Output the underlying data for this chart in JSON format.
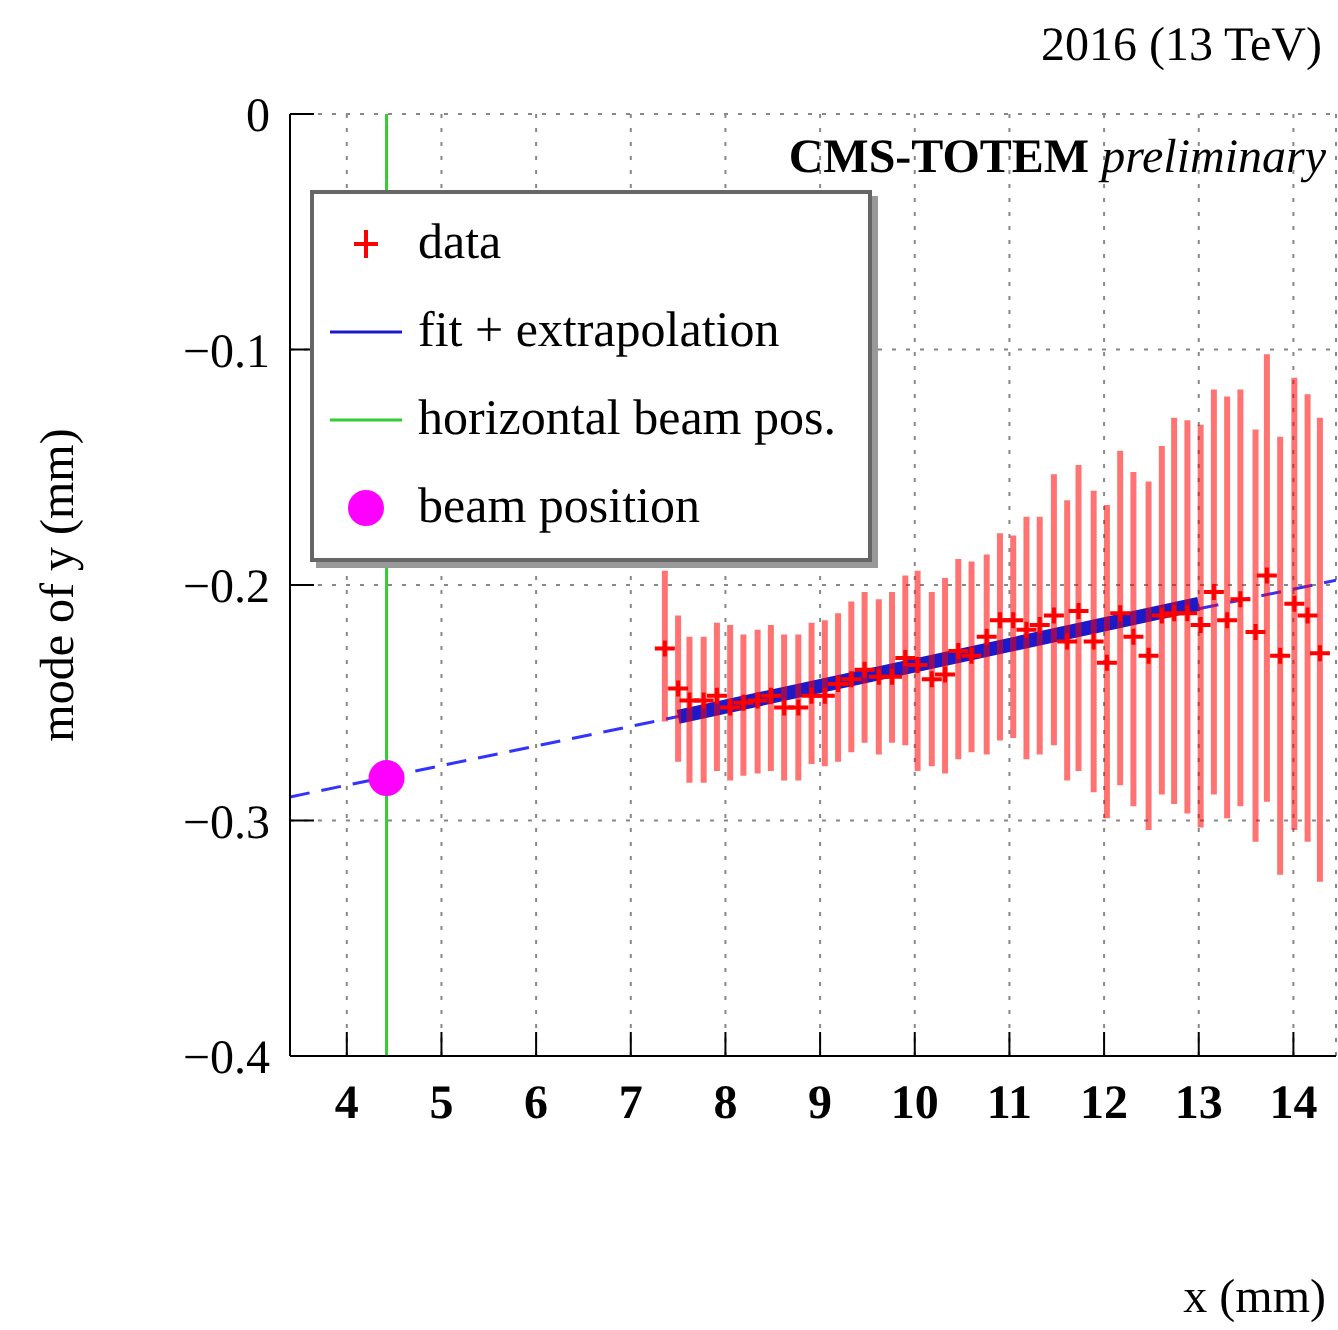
{
  "chart_data": {
    "type": "scatter",
    "annotations": [
      "2016 (13 TeV)",
      "CMS-TOTEM preliminary"
    ],
    "xlabel": "x   (mm)",
    "ylabel": "mode of y   (mm)",
    "xlim": [
      3.4,
      14.45
    ],
    "ylim": [
      -0.4,
      0
    ],
    "xticks": [
      4,
      5,
      6,
      7,
      8,
      9,
      10,
      11,
      12,
      13,
      14
    ],
    "yticks": [
      -0.4,
      -0.3,
      -0.2,
      -0.1,
      0
    ],
    "grid": true,
    "legend": "top left",
    "ref_lines": [
      {
        "axis": "x",
        "value": 4.42,
        "label": "horizontal beam pos.",
        "color": "#33cc33"
      }
    ],
    "series": [
      {
        "name": "data",
        "color": "#ff0000",
        "marker": "cross",
        "x": [
          7.36,
          7.5,
          7.62,
          7.77,
          7.91,
          8.05,
          8.19,
          8.34,
          8.48,
          8.62,
          8.77,
          8.91,
          9.05,
          9.19,
          9.33,
          9.47,
          9.62,
          9.76,
          9.9,
          10.03,
          10.18,
          10.32,
          10.46,
          10.6,
          10.76,
          10.9,
          11.04,
          11.18,
          11.32,
          11.47,
          11.61,
          11.73,
          11.89,
          12.03,
          12.17,
          12.31,
          12.47,
          12.61,
          12.74,
          12.88,
          13.02,
          13.16,
          13.3,
          13.44,
          13.6,
          13.72,
          13.86,
          14.01,
          14.15,
          14.28
        ],
        "values": [
          -0.227,
          -0.244,
          -0.249,
          -0.249,
          -0.247,
          -0.252,
          -0.25,
          -0.249,
          -0.247,
          -0.252,
          -0.252,
          -0.247,
          -0.247,
          -0.242,
          -0.24,
          -0.236,
          -0.239,
          -0.239,
          -0.231,
          -0.234,
          -0.24,
          -0.238,
          -0.228,
          -0.23,
          -0.222,
          -0.215,
          -0.215,
          -0.219,
          -0.217,
          -0.213,
          -0.224,
          -0.211,
          -0.224,
          -0.233,
          -0.212,
          -0.222,
          -0.23,
          -0.213,
          -0.212,
          -0.212,
          -0.217,
          -0.203,
          -0.215,
          -0.206,
          -0.22,
          -0.196,
          -0.23,
          -0.208,
          -0.213,
          -0.229
        ],
        "errors": [
          [
            -0.258,
            -0.194
          ],
          [
            -0.275,
            -0.213
          ],
          [
            -0.284,
            -0.222
          ],
          [
            -0.284,
            -0.222
          ],
          [
            -0.279,
            -0.216
          ],
          [
            -0.283,
            -0.217
          ],
          [
            -0.281,
            -0.221
          ],
          [
            -0.28,
            -0.219
          ],
          [
            -0.279,
            -0.217
          ],
          [
            -0.283,
            -0.221
          ],
          [
            -0.283,
            -0.221
          ],
          [
            -0.276,
            -0.216
          ],
          [
            -0.277,
            -0.215
          ],
          [
            -0.275,
            -0.212
          ],
          [
            -0.271,
            -0.207
          ],
          [
            -0.267,
            -0.203
          ],
          [
            -0.272,
            -0.206
          ],
          [
            -0.267,
            -0.203
          ],
          [
            -0.268,
            -0.196
          ],
          [
            -0.279,
            -0.194
          ],
          [
            -0.277,
            -0.203
          ],
          [
            -0.28,
            -0.197
          ],
          [
            -0.274,
            -0.189
          ],
          [
            -0.271,
            -0.19
          ],
          [
            -0.272,
            -0.187
          ],
          [
            -0.266,
            -0.178
          ],
          [
            -0.265,
            -0.179
          ],
          [
            -0.274,
            -0.171
          ],
          [
            -0.272,
            -0.171
          ],
          [
            -0.268,
            -0.153
          ],
          [
            -0.283,
            -0.164
          ],
          [
            -0.279,
            -0.149
          ],
          [
            -0.288,
            -0.16
          ],
          [
            -0.299,
            -0.166
          ],
          [
            -0.285,
            -0.143
          ],
          [
            -0.294,
            -0.152
          ],
          [
            -0.304,
            -0.156
          ],
          [
            -0.289,
            -0.141
          ],
          [
            -0.293,
            -0.129
          ],
          [
            -0.297,
            -0.13
          ],
          [
            -0.303,
            -0.132
          ],
          [
            -0.289,
            -0.117
          ],
          [
            -0.299,
            -0.12
          ],
          [
            -0.294,
            -0.117
          ],
          [
            -0.309,
            -0.134
          ],
          [
            -0.292,
            -0.102
          ],
          [
            -0.323,
            -0.137
          ],
          [
            -0.304,
            -0.112
          ],
          [
            -0.309,
            -0.119
          ],
          [
            -0.326,
            -0.129
          ]
        ]
      },
      {
        "type": "line",
        "color": "#3333ff",
        "line_style": "dashed",
        "x": [
          3.4,
          14.45
        ],
        "values": [
          -0.29,
          -0.198
        ]
      },
      {
        "name": "fit + extrapolation",
        "type": "line",
        "color": "#1a1acc",
        "line_style": "solid",
        "x": [
          7.5,
          13.0
        ],
        "values": [
          -0.256,
          -0.208
        ]
      },
      {
        "name": "beam position",
        "color": "#ff00ff",
        "marker": "circle",
        "x": [
          4.42
        ],
        "values": [
          -0.282
        ]
      }
    ]
  }
}
